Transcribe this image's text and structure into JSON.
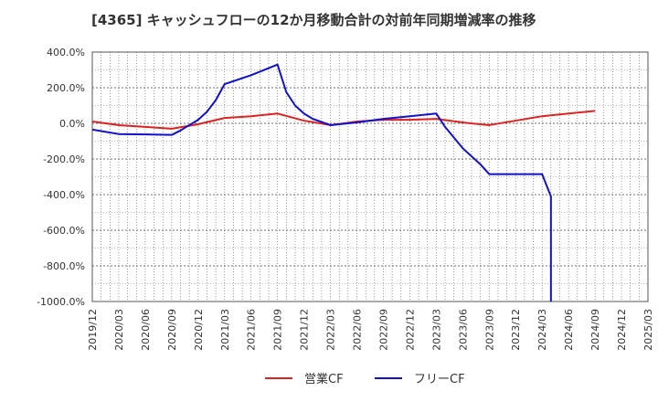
{
  "chart_data": {
    "type": "line",
    "title": "[4365]  キャッシュフローの12か月移動合計の対前年同期増減率の推移",
    "xlabel": "",
    "ylabel": "",
    "ylim": [
      -1000,
      400
    ],
    "y_ticks": [
      400,
      200,
      0,
      -200,
      -400,
      -600,
      -800,
      -1000
    ],
    "y_tick_labels": [
      "400.0%",
      "200.0%",
      "0.0%",
      "-200.0%",
      "-400.0%",
      "-600.0%",
      "-800.0%",
      "-1000.0%"
    ],
    "x_ticks": [
      "2019/12",
      "2020/03",
      "2020/06",
      "2020/09",
      "2020/12",
      "2021/03",
      "2021/06",
      "2021/09",
      "2021/12",
      "2022/03",
      "2022/06",
      "2022/09",
      "2022/12",
      "2023/03",
      "2023/06",
      "2023/09",
      "2023/12",
      "2024/03",
      "2024/06",
      "2024/09",
      "2024/12",
      "2025/03"
    ],
    "grid": true,
    "legend_position": "bottom",
    "series": [
      {
        "name": "営業CF",
        "color": "#dd2222",
        "points": [
          [
            "2019/12",
            10
          ],
          [
            "2020/03",
            -10
          ],
          [
            "2020/06",
            -20
          ],
          [
            "2020/09",
            -30
          ],
          [
            "2020/12",
            -5
          ],
          [
            "2021/03",
            30
          ],
          [
            "2021/06",
            40
          ],
          [
            "2021/09",
            55
          ],
          [
            "2021/12",
            15
          ],
          [
            "2022/03",
            -10
          ],
          [
            "2022/06",
            10
          ],
          [
            "2022/09",
            20
          ],
          [
            "2022/12",
            20
          ],
          [
            "2023/03",
            25
          ],
          [
            "2023/06",
            5
          ],
          [
            "2023/09",
            -10
          ],
          [
            "2023/12",
            15
          ],
          [
            "2024/03",
            40
          ],
          [
            "2024/06",
            55
          ],
          [
            "2024/09",
            70
          ]
        ]
      },
      {
        "name": "フリーCF",
        "color": "#1111cc",
        "points": [
          [
            "2019/12",
            -35
          ],
          [
            "2020/03",
            -60
          ],
          [
            "2020/06",
            -62
          ],
          [
            "2020/09",
            -65
          ],
          [
            "2020/10",
            -40
          ],
          [
            "2020/11",
            -10
          ],
          [
            "2020/12",
            20
          ],
          [
            "2021/01",
            65
          ],
          [
            "2021/02",
            130
          ],
          [
            "2021/03",
            220
          ],
          [
            "2021/06",
            270
          ],
          [
            "2021/08",
            310
          ],
          [
            "2021/09",
            330
          ],
          [
            "2021/10",
            175
          ],
          [
            "2021/11",
            100
          ],
          [
            "2021/12",
            55
          ],
          [
            "2022/01",
            25
          ],
          [
            "2022/03",
            -10
          ],
          [
            "2022/06",
            5
          ],
          [
            "2022/09",
            25
          ],
          [
            "2022/12",
            40
          ],
          [
            "2023/03",
            55
          ],
          [
            "2023/04",
            -20
          ],
          [
            "2023/06",
            -140
          ],
          [
            "2023/08",
            -230
          ],
          [
            "2023/09",
            -285
          ],
          [
            "2023/12",
            -285
          ],
          [
            "2024/03",
            -285
          ],
          [
            "2024/04",
            -410
          ],
          [
            "2024/04",
            -1000
          ]
        ]
      }
    ]
  }
}
